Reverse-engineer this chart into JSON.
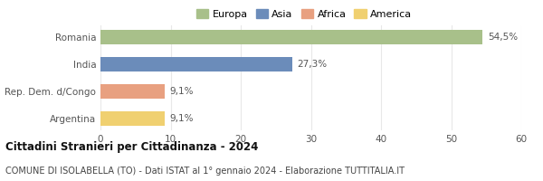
{
  "categories": [
    "Romania",
    "India",
    "Rep. Dem. d/Congo",
    "Argentina"
  ],
  "values": [
    54.5,
    27.3,
    9.1,
    9.1
  ],
  "bar_colors": [
    "#a8c08a",
    "#6b8cba",
    "#e8a080",
    "#f0d070"
  ],
  "legend_labels": [
    "Europa",
    "Asia",
    "Africa",
    "America"
  ],
  "legend_colors": [
    "#a8c08a",
    "#6b8cba",
    "#e8a080",
    "#f0d070"
  ],
  "bar_labels": [
    "54,5%",
    "27,3%",
    "9,1%",
    "9,1%"
  ],
  "xlim": [
    0,
    60
  ],
  "xticks": [
    0,
    10,
    20,
    30,
    40,
    50,
    60
  ],
  "title": "Cittadini Stranieri per Cittadinanza - 2024",
  "subtitle": "COMUNE DI ISOLABELLA (TO) - Dati ISTAT al 1° gennaio 2024 - Elaborazione TUTTITALIA.IT",
  "background_color": "#ffffff",
  "grid_color": "#e8e8e8",
  "bar_height": 0.52
}
